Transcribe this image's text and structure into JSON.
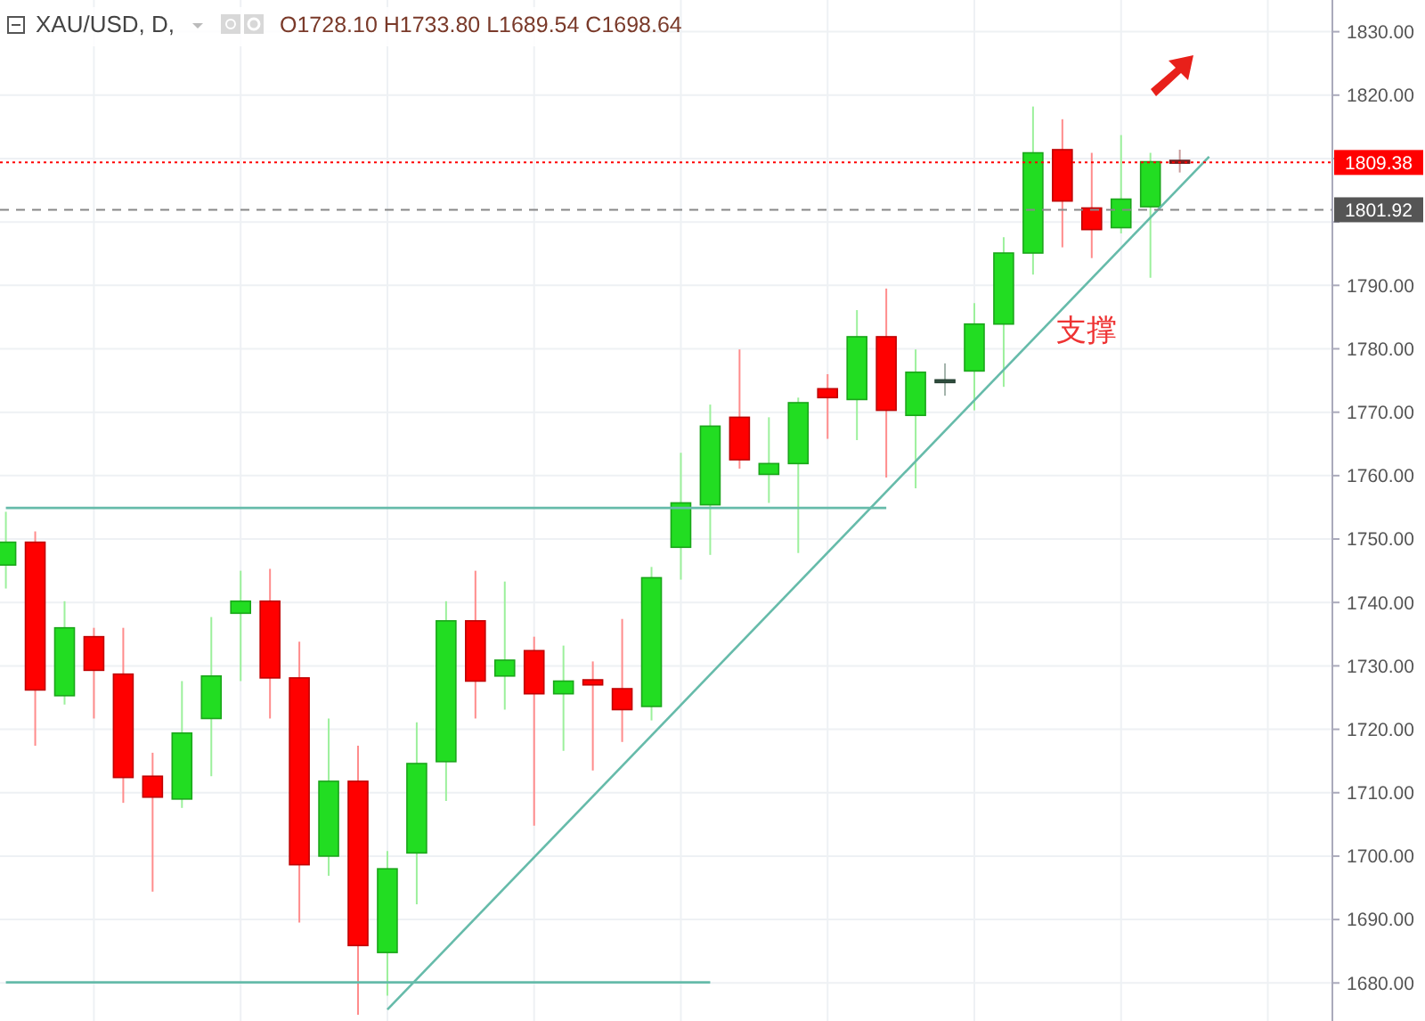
{
  "chart_data": {
    "type": "candlestick",
    "title": "XAU/USD, D,",
    "subtitle": "O1728.10 H1733.80 L1689.54 C1698.64",
    "categories": [
      null,
      null,
      null,
      null,
      null,
      null,
      null,
      null,
      null,
      null,
      null,
      null,
      null,
      null,
      null,
      null,
      null,
      null,
      null,
      null,
      null,
      null,
      null,
      null,
      null,
      null,
      null,
      null,
      null,
      null,
      null,
      null,
      null,
      null,
      null,
      null,
      null,
      null,
      null,
      null,
      null,
      null
    ],
    "ohlc": [
      [
        1745.9,
        1754.3,
        1742.2,
        1749.5
      ],
      [
        1749.5,
        1751.2,
        1717.4,
        1726.2
      ],
      [
        1725.3,
        1740.2,
        1723.9,
        1736.0
      ],
      [
        1734.6,
        1736.0,
        1721.7,
        1729.3
      ],
      [
        1728.7,
        1736.0,
        1708.4,
        1712.4
      ],
      [
        1712.6,
        1716.3,
        1694.4,
        1709.3
      ],
      [
        1709.0,
        1727.6,
        1707.6,
        1719.4
      ],
      [
        1721.7,
        1737.7,
        1712.6,
        1728.4
      ],
      [
        1738.3,
        1745.0,
        1727.6,
        1740.2
      ],
      [
        1740.2,
        1745.3,
        1721.7,
        1728.1
      ],
      [
        1728.1,
        1733.8,
        1689.54,
        1698.64
      ],
      [
        1700.0,
        1721.7,
        1696.9,
        1711.8
      ],
      [
        1711.8,
        1717.4,
        1675.0,
        1685.9
      ],
      [
        1684.8,
        1700.8,
        1678.0,
        1698.0
      ],
      [
        1700.5,
        1721.1,
        1692.4,
        1714.6
      ],
      [
        1714.9,
        1740.2,
        1708.7,
        1737.1
      ],
      [
        1737.1,
        1745.0,
        1721.7,
        1727.6
      ],
      [
        1728.4,
        1743.3,
        1723.1,
        1730.9
      ],
      [
        1732.4,
        1734.6,
        1704.8,
        1725.6
      ],
      [
        1725.6,
        1733.2,
        1716.6,
        1727.6
      ],
      [
        1727.8,
        1730.7,
        1713.5,
        1727.0
      ],
      [
        1726.4,
        1737.4,
        1718.0,
        1723.1
      ],
      [
        1723.6,
        1745.6,
        1721.4,
        1743.9
      ],
      [
        1748.7,
        1763.6,
        1743.6,
        1755.7
      ],
      [
        1755.4,
        1771.2,
        1747.5,
        1767.8
      ],
      [
        1769.2,
        1779.9,
        1761.1,
        1762.5
      ],
      [
        1760.2,
        1769.2,
        1755.7,
        1761.9
      ],
      [
        1761.9,
        1772.3,
        1747.8,
        1771.5
      ],
      [
        1773.7,
        1776.0,
        1765.8,
        1772.3
      ],
      [
        1772.0,
        1786.1,
        1765.6,
        1781.9
      ],
      [
        1781.9,
        1789.5,
        1759.7,
        1770.3
      ],
      [
        1769.5,
        1779.9,
        1758.0,
        1776.3
      ],
      [
        1774.9,
        1777.7,
        1772.6,
        1775.1
      ],
      [
        1776.5,
        1787.2,
        1770.3,
        1783.9
      ],
      [
        1783.9,
        1797.6,
        1774.0,
        1795.1
      ],
      [
        1795.1,
        1818.2,
        1791.7,
        1810.9
      ],
      [
        1811.4,
        1816.2,
        1796.0,
        1803.3
      ],
      [
        1802.2,
        1810.9,
        1794.3,
        1798.8
      ],
      [
        1799.1,
        1813.7,
        1798.2,
        1803.6
      ],
      [
        1802.4,
        1810.9,
        1791.2,
        1809.5
      ],
      [
        1809.7,
        1811.4,
        1807.8,
        1809.38
      ],
      null
    ],
    "colors": [
      "#22dd22",
      "#ff0000",
      "#22dd22",
      "#ff0000",
      "#ff0000",
      "#ff0000",
      "#22dd22",
      "#22dd22",
      "#22dd22",
      "#ff0000",
      "#ff0000",
      "#22dd22",
      "#ff0000",
      "#22dd22",
      "#22dd22",
      "#22dd22",
      "#ff0000",
      "#22dd22",
      "#ff0000",
      "#22dd22",
      "#ff0000",
      "#ff0000",
      "#22dd22",
      "#22dd22",
      "#22dd22",
      "#ff0000",
      "#22dd22",
      "#22dd22",
      "#ff0000",
      "#22dd22",
      "#ff0000",
      "#22dd22",
      "#335544",
      "#22dd22",
      "#22dd22",
      "#22dd22",
      "#ff0000",
      "#ff0000",
      "#22dd22",
      "#22dd22",
      "#882222",
      null
    ],
    "series": [
      {
        "type": "line",
        "color": "#66bbaa",
        "values": [
          1754.9,
          1754.9,
          1754.9,
          1754.9,
          1754.9,
          1754.9,
          1754.9,
          1754.9,
          1754.9,
          1754.9,
          1754.9,
          1754.9,
          1754.9,
          1754.9,
          1754.9,
          1754.9,
          1754.9,
          1754.9,
          1754.9,
          1754.9,
          1754.9,
          1754.9,
          1754.9,
          1754.9,
          1754.9,
          1754.9,
          1754.9,
          1754.9,
          1754.9,
          1754.9,
          1754.9,
          null,
          null,
          null,
          null,
          null,
          null,
          null,
          null,
          null,
          null,
          null
        ]
      },
      {
        "type": "line",
        "color": "#66bbaa",
        "values": [
          1680.1,
          1680.1,
          1680.1,
          1680.1,
          1680.1,
          1680.1,
          1680.1,
          1680.1,
          1680.1,
          1680.1,
          1680.1,
          1680.1,
          1680.1,
          1680.1,
          1680.1,
          1680.1,
          1680.1,
          1680.1,
          1680.1,
          1680.1,
          1680.1,
          1680.1,
          1680.1,
          1680.1,
          1680.1,
          null,
          null,
          null,
          null,
          null,
          null,
          null,
          null,
          null,
          null,
          null,
          null,
          null,
          null,
          null,
          null,
          null
        ]
      },
      {
        "type": "line",
        "color": "#66bbaa",
        "values": [
          null,
          null,
          null,
          null,
          null,
          null,
          null,
          null,
          null,
          null,
          null,
          null,
          null,
          1675.8,
          null,
          null,
          null,
          null,
          null,
          null,
          null,
          null,
          null,
          null,
          null,
          null,
          null,
          null,
          null,
          null,
          null,
          null,
          null,
          null,
          null,
          null,
          null,
          null,
          null,
          null,
          null,
          1810.3
        ]
      }
    ],
    "ylim": [
      1674,
      1835
    ],
    "yticks": [
      {
        "value": 1680,
        "label": "1680.00"
      },
      {
        "value": 1690,
        "label": "1690.00"
      },
      {
        "value": 1700,
        "label": "1700.00"
      },
      {
        "value": 1710,
        "label": "1710.00"
      },
      {
        "value": 1720,
        "label": "1720.00"
      },
      {
        "value": 1730,
        "label": "1730.00"
      },
      {
        "value": 1740,
        "label": "1740.00"
      },
      {
        "value": 1750,
        "label": "1750.00"
      },
      {
        "value": 1760,
        "label": "1760.00"
      },
      {
        "value": 1770,
        "label": "1770.00"
      },
      {
        "value": 1780,
        "label": "1780.00"
      },
      {
        "value": 1790,
        "label": "1790.00"
      },
      {
        "value": 1800,
        "label": null
      },
      {
        "value": 1810,
        "label": null
      },
      {
        "value": 1820,
        "label": "1820.00"
      },
      {
        "value": 1830,
        "label": "1830.00"
      }
    ],
    "ref_lines": [
      {
        "axis": "y",
        "value": 1809.38,
        "label": "1809.38",
        "color": "#ff0000",
        "line_style": "dotted"
      },
      {
        "axis": "y",
        "value": 1801.92,
        "label": "1801.92",
        "color": "#888888",
        "line_style": "dashed"
      }
    ],
    "annotations": [
      "支撑"
    ],
    "grid": true
  }
}
